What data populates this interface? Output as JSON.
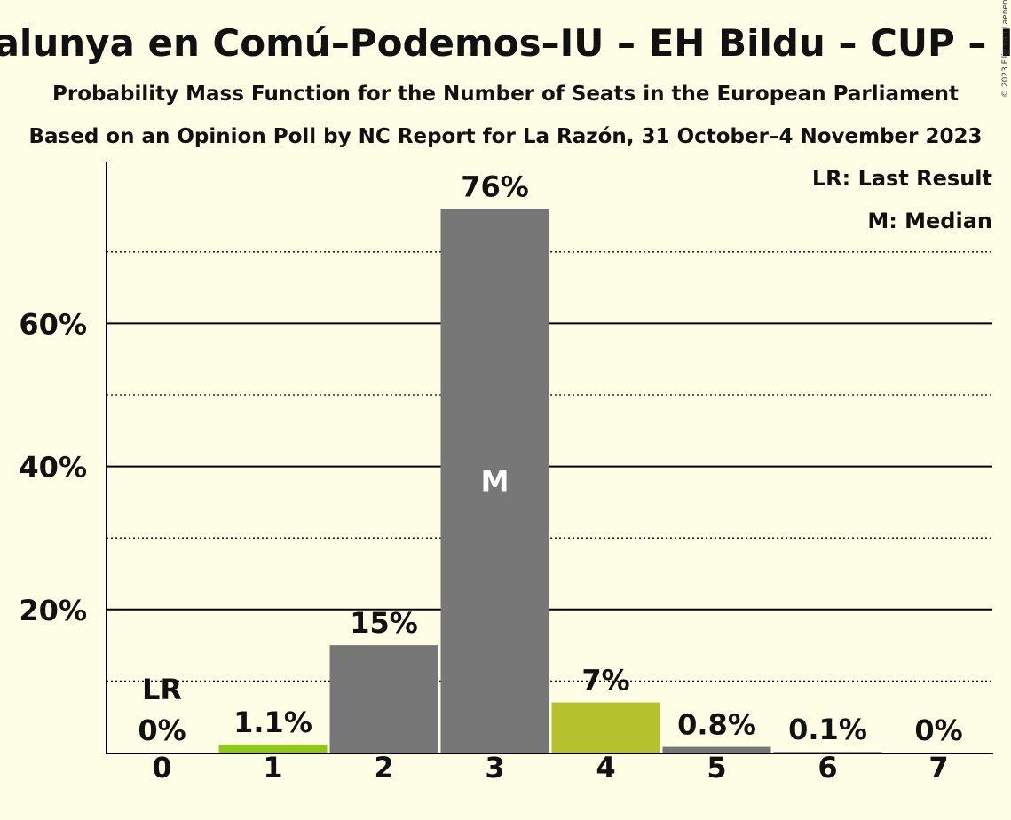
{
  "chart_data": {
    "type": "bar",
    "title": "Sumar–Más País–Compromís–Catalunya en Comú–Podemos–IU – EH Bildu – CUP – IU – PACMA – Podemos – Más País",
    "subtitle": "Probability Mass Function for the Number of Seats in the European Parliament",
    "subtitle2": "Based on an Opinion Poll by NC Report for La Razón, 31 October–4 November 2023",
    "copyright": "© 2023 Filip van Laenen",
    "categories": [
      "0",
      "1",
      "2",
      "3",
      "4",
      "5",
      "6",
      "7"
    ],
    "values": [
      0,
      1.1,
      15,
      76,
      7,
      0.8,
      0.1,
      0
    ],
    "value_labels": [
      "0%",
      "1.1%",
      "15%",
      "76%",
      "7%",
      "0.8%",
      "0.1%",
      "0%"
    ],
    "bar_colors": [
      "#777777",
      "#8ec919",
      "#777777",
      "#777777",
      "#b5c22e",
      "#777777",
      "#777777",
      "#777777"
    ],
    "ylim": [
      0,
      80
    ],
    "yticks": [
      20,
      40,
      60
    ],
    "ytick_labels": [
      "20%",
      "40%",
      "60%"
    ],
    "minor_gridlines": [
      10,
      30,
      50,
      70
    ],
    "last_result_seat": 0,
    "last_result_label": "LR",
    "median_seat": 3,
    "median_label": "M",
    "legend": [
      "LR: Last Result",
      "M: Median"
    ],
    "legend_position": "top-right",
    "grid": true
  },
  "colors": {
    "background": "#fefee6",
    "axis": "#000000"
  }
}
